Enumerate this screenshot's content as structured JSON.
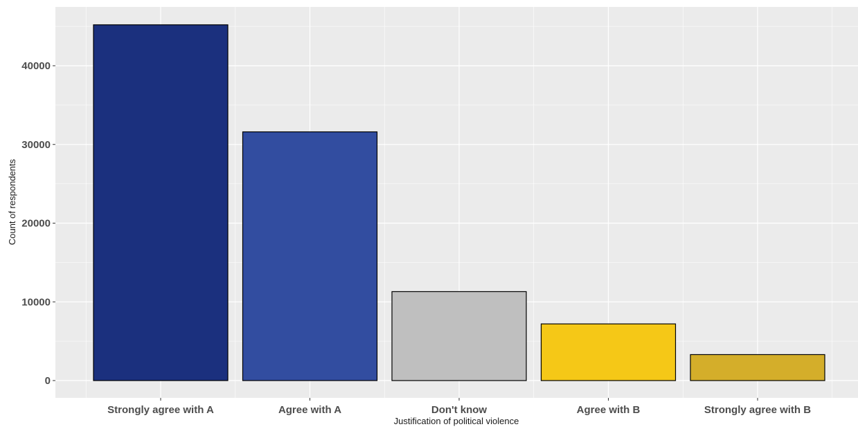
{
  "chart_data": {
    "type": "bar",
    "title": "",
    "xlabel": "Justification of political violence",
    "ylabel": "Count of respondents",
    "categories": [
      "Strongly agree with A",
      "Agree with A",
      "Don't know",
      "Agree with B",
      "Strongly agree with B"
    ],
    "values": [
      45200,
      31600,
      11300,
      7200,
      3300
    ],
    "colors": [
      "#1b307e",
      "#324da0",
      "#bfbfbf",
      "#f5c817",
      "#d4ae2a"
    ],
    "yticks": [
      0,
      10000,
      20000,
      30000,
      40000
    ],
    "ylim": [
      0,
      47000
    ],
    "grid": true,
    "legend": "none",
    "panel_background": "#ebebeb",
    "grid_color": "#ffffff"
  }
}
